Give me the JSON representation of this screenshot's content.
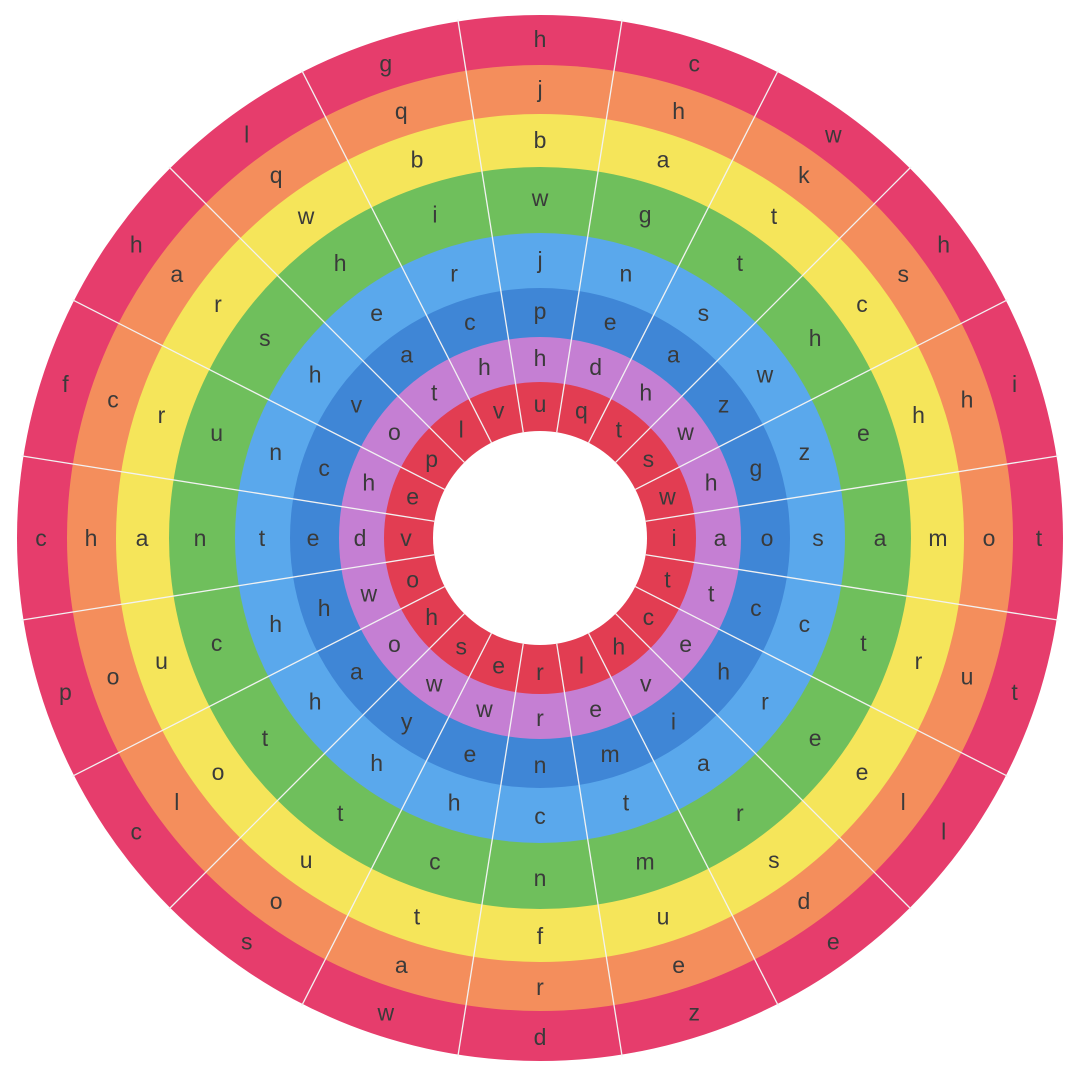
{
  "ring_colors": [
    "#e23d52",
    "#c57fd3",
    "#3f86d6",
    "#5aa8ec",
    "#6fbf5c",
    "#f5e55a",
    "#f48e5c",
    "#e63d6c"
  ],
  "hole_color": "#ffffff",
  "separator_color": "#f2f2f2",
  "letter_color": "#3a3a3a",
  "sectors": [
    [
      "u",
      "h",
      "p",
      "j",
      "w",
      "b",
      "j",
      "h"
    ],
    [
      "q",
      "d",
      "e",
      "n",
      "g",
      "a",
      "h",
      "c"
    ],
    [
      "t",
      "h",
      "a",
      "s",
      "t",
      "t",
      "k",
      "w"
    ],
    [
      "s",
      "w",
      "z",
      "w",
      "h",
      "c",
      "s",
      "h"
    ],
    [
      "w",
      "h",
      "g",
      "z",
      "e",
      "h",
      "h",
      "i"
    ],
    [
      "i",
      "a",
      "o",
      "s",
      "a",
      "m",
      "o",
      "t"
    ],
    [
      "t",
      "t",
      "c",
      "c",
      "t",
      "r",
      "u",
      "t"
    ],
    [
      "c",
      "e",
      "h",
      "r",
      "e",
      "e",
      "l",
      "l"
    ],
    [
      "h",
      "v",
      "i",
      "a",
      "r",
      "s",
      "d",
      "e"
    ],
    [
      "l",
      "e",
      "m",
      "t",
      "m",
      "u",
      "e",
      "z"
    ],
    [
      "r",
      "r",
      "n",
      "c",
      "n",
      "f",
      "r",
      "d"
    ],
    [
      "e",
      "w",
      "e",
      "h",
      "c",
      "t",
      "a",
      "w"
    ],
    [
      "s",
      "w",
      "y",
      "h",
      "t",
      "u",
      "o",
      "s"
    ],
    [
      "h",
      "o",
      "a",
      "h",
      "t",
      "o",
      "l",
      "c"
    ],
    [
      "o",
      "w",
      "h",
      "h",
      "c",
      "u",
      "o",
      "p"
    ],
    [
      "v",
      "d",
      "e",
      "t",
      "n",
      "a",
      "h",
      "c"
    ],
    [
      "e",
      "h",
      "c",
      "n",
      "u",
      "r",
      "c",
      "f"
    ],
    [
      "p",
      "o",
      "v",
      "h",
      "s",
      "r",
      "a",
      "h"
    ],
    [
      "l",
      "t",
      "a",
      "e",
      "h",
      "w",
      "q",
      "l"
    ],
    [
      "v",
      "h",
      "c",
      "r",
      "i",
      "b",
      "q",
      "g"
    ]
  ]
}
